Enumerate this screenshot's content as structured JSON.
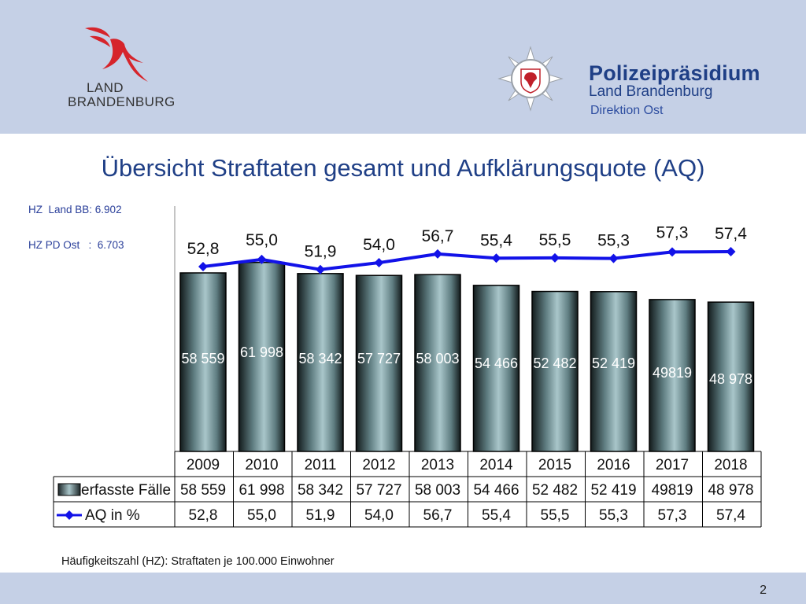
{
  "header": {
    "brand_line1": "LAND",
    "brand_line2": "BRANDENBURG",
    "org_title": "Polizeipräsidium",
    "org_sub": "Land Brandenburg",
    "org_dir": "Direktion Ost"
  },
  "side_notes": {
    "hz_land": "HZ  Land BB: 6.902",
    "hz_pd": "HZ PD Ost   :  6.703"
  },
  "footnote": "Häufigkeitszahl (HZ): Straftaten je 100.000 Einwohner",
  "page_number": "2",
  "colors": {
    "bar": "#2b3a3c",
    "line": "#1212e8",
    "header_bg": "#c5d0e6",
    "title": "#1f3f86"
  },
  "chart_data": {
    "type": "bar",
    "title": "Übersicht Straftaten gesamt und Aufklärungsquote (AQ)",
    "categories": [
      "2009",
      "2010",
      "2011",
      "2012",
      "2013",
      "2014",
      "2015",
      "2016",
      "2017",
      "2018"
    ],
    "series": [
      {
        "name": "erfasste Fälle",
        "type": "bar",
        "values": [
          58559,
          61998,
          58342,
          57727,
          58003,
          54466,
          52482,
          52419,
          49819,
          48978
        ],
        "labels": [
          "58 559",
          "61 998",
          "58 342",
          "57 727",
          "58 003",
          "54 466",
          "52 482",
          "52 419",
          "49819",
          "48 978"
        ]
      },
      {
        "name": "AQ in %",
        "type": "line",
        "values": [
          52.8,
          55.0,
          51.9,
          54.0,
          56.7,
          55.4,
          55.5,
          55.3,
          57.3,
          57.4
        ],
        "labels": [
          "52,8",
          "55,0",
          "51,9",
          "54,0",
          "56,7",
          "55,4",
          "55,5",
          "55,3",
          "57,3",
          "57,4"
        ]
      }
    ],
    "data_table": true,
    "grid": false
  }
}
